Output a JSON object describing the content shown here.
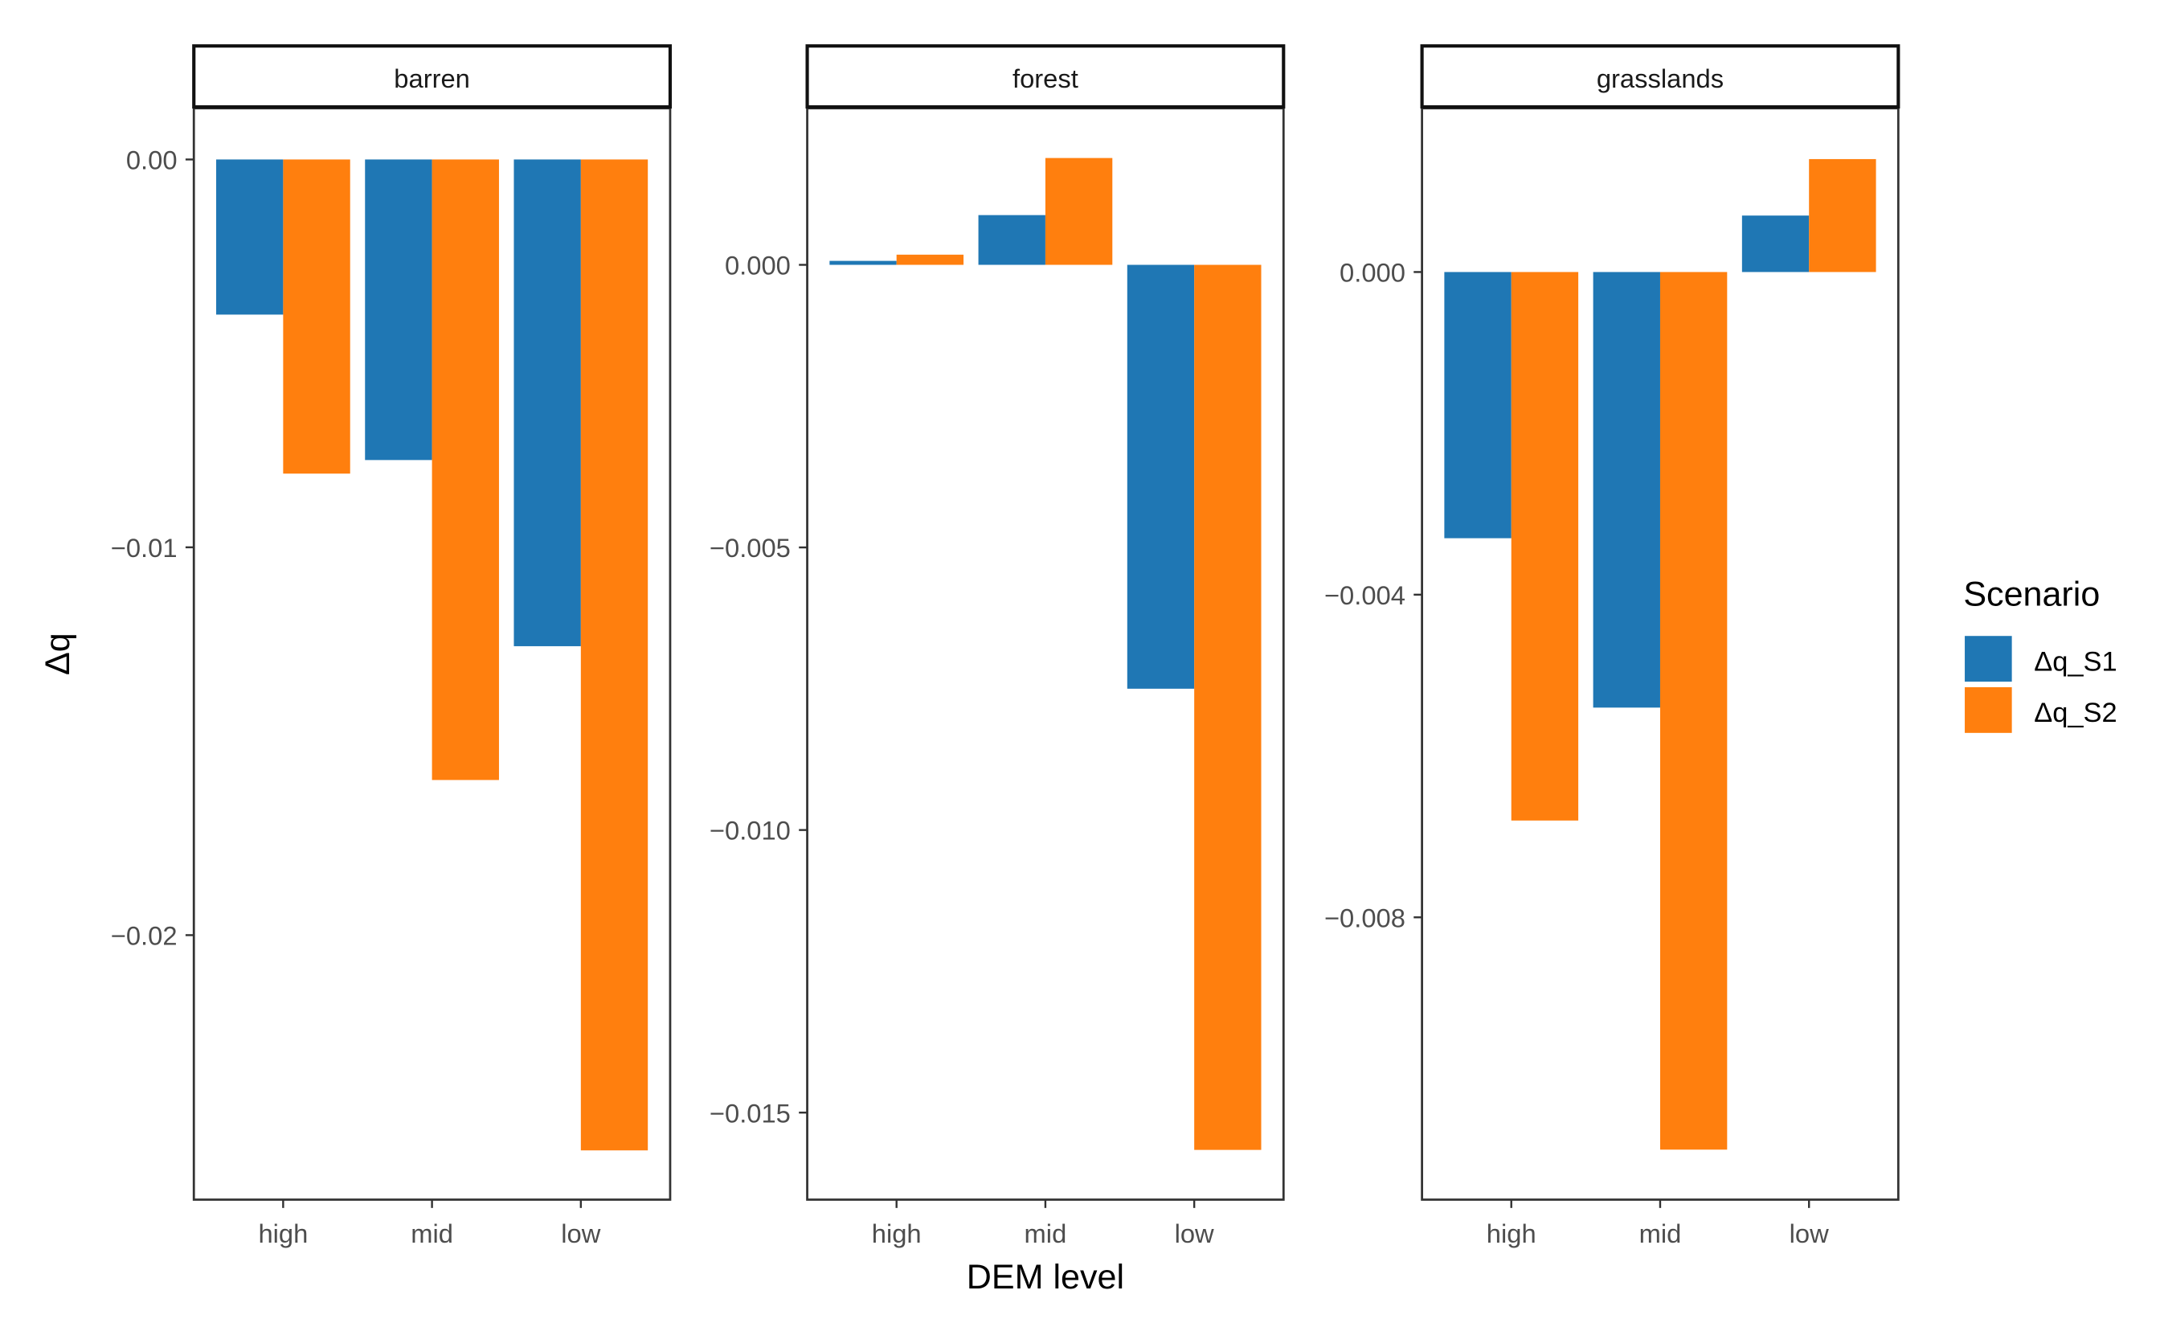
{
  "chart_data": {
    "type": "bar",
    "facet_by": "land cover",
    "xlabel": "DEM level",
    "ylabel": "Δq",
    "categories": [
      "high",
      "mid",
      "low"
    ],
    "legend": {
      "title": "Scenario",
      "placement": "right",
      "entries": [
        "Δq_S1",
        "Δq_S2"
      ]
    },
    "colors": {
      "Δq_S1": "#1f77b4",
      "Δq_S2": "#ff7f0e"
    },
    "panels": [
      {
        "title": "barren",
        "ylim": [
          -0.02682,
          0.00132
        ],
        "yticks": [
          0,
          -0.01,
          -0.02
        ],
        "ytick_labels": [
          "0.00",
          "−0.01",
          "−0.02"
        ],
        "series": [
          {
            "name": "Δq_S1",
            "values": [
              -0.004,
              -0.00775,
              -0.01255
            ]
          },
          {
            "name": "Δq_S2",
            "values": [
              -0.0081,
              -0.016,
              -0.02555
            ]
          }
        ]
      },
      {
        "title": "forest",
        "ylim": [
          -0.01654,
          0.00277
        ],
        "yticks": [
          0,
          -0.005,
          -0.01,
          -0.015
        ],
        "ytick_labels": [
          "0.000",
          "−0.005",
          "−0.010",
          "−0.015"
        ],
        "series": [
          {
            "name": "Δq_S1",
            "values": [
              7e-05,
              0.00088,
              -0.0075
            ]
          },
          {
            "name": "Δq_S2",
            "values": [
              0.00018,
              0.00189,
              -0.01566
            ]
          }
        ]
      },
      {
        "title": "grasslands",
        "ylim": [
          -0.0115,
          0.00203
        ],
        "yticks": [
          0,
          -0.004,
          -0.008
        ],
        "ytick_labels": [
          "0.000",
          "−0.004",
          "−0.008"
        ],
        "series": [
          {
            "name": "Δq_S1",
            "values": [
              -0.0033,
              -0.0054,
              0.0007
            ]
          },
          {
            "name": "Δq_S2",
            "values": [
              -0.0068,
              -0.01088,
              0.0014
            ]
          }
        ]
      }
    ]
  }
}
